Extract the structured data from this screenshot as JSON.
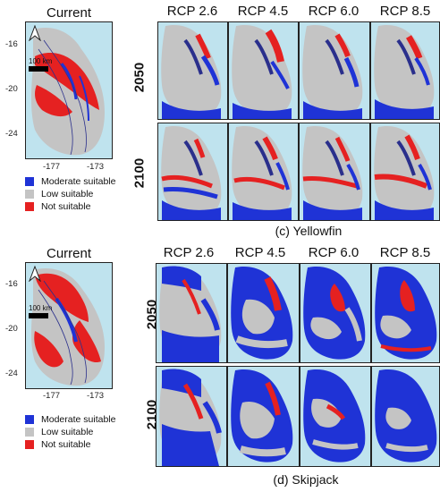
{
  "colors": {
    "ocean": "#bfe3ee",
    "moderate": "#1f33d6",
    "low": "#c4c4c4",
    "not": "#e52121",
    "contour": "#2a2f8c"
  },
  "icons": {
    "north_arrow": "north-arrow-icon"
  },
  "yellowfin": {
    "current_title": "Current",
    "scale_label": "100 km",
    "y_ticks": [
      "-16",
      "-20",
      "-24"
    ],
    "x_ticks": [
      "-177",
      "-173"
    ],
    "scenarios": [
      "RCP 2.6",
      "RCP 4.5",
      "RCP 6.0",
      "RCP 8.5"
    ],
    "years": [
      "2050",
      "2100"
    ],
    "legend": [
      "Moderate suitable",
      "Low suitable",
      "Not suitable"
    ],
    "caption": "(c) Yellowfin"
  },
  "skipjack": {
    "current_title": "Current",
    "scale_label": "100 km",
    "y_ticks": [
      "-16",
      "-20",
      "-24"
    ],
    "x_ticks": [
      "-177",
      "-173"
    ],
    "scenarios": [
      "RCP 2.6",
      "RCP 4.5",
      "RCP 6.0",
      "RCP 8.5"
    ],
    "years": [
      "2050",
      "2100"
    ],
    "legend": [
      "Moderate suitable",
      "Low suitable",
      "Not suitable"
    ],
    "caption": "(d) Skipjack"
  }
}
